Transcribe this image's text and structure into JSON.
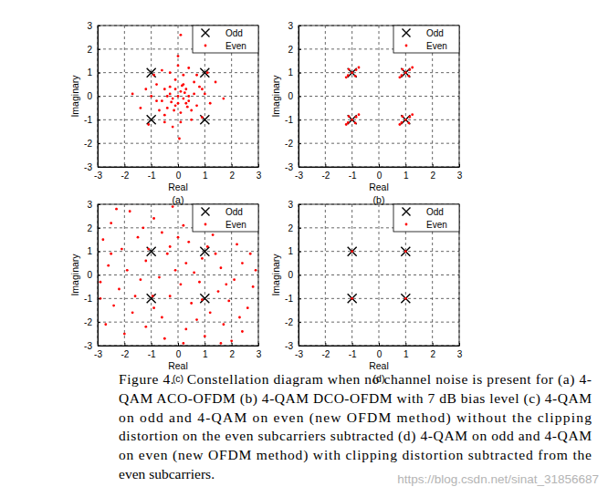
{
  "chart_data": [
    {
      "type": "scatter",
      "title": "(a)",
      "xlabel": "Real",
      "ylabel": "Imaginary",
      "xlim": [
        -3,
        3
      ],
      "ylim": [
        -3,
        3
      ],
      "xticks": [
        -3,
        -2,
        -1,
        0,
        1,
        2,
        3
      ],
      "yticks": [
        -3,
        -2,
        -1,
        0,
        1,
        2,
        3
      ],
      "grid": true,
      "legend": "upper right",
      "series": [
        {
          "name": "Odd",
          "color": "#000000",
          "marker": "x",
          "x": [
            -1,
            -1,
            1,
            1
          ],
          "values": [
            1,
            -1,
            1,
            -1
          ]
        },
        {
          "name": "Even",
          "color": "#ff0000",
          "marker": "point",
          "x": [
            0.1,
            -0.3,
            0.4,
            -0.1,
            0.2,
            -0.5,
            0.6,
            -0.2,
            0,
            0.3,
            -0.4,
            0.5,
            -0.6,
            0.1,
            -0.1,
            0.8,
            -0.8,
            0.7,
            -0.7,
            0.2,
            -0.3,
            0,
            0.1,
            -0.2,
            1,
            -1,
            1.2,
            -1.2,
            0.4,
            -0.6,
            0.5,
            -0.5,
            1.4,
            -1.4,
            0.9,
            -0.9,
            0.3,
            -0.3,
            0.6,
            -0.5,
            0,
            0.1,
            0.05,
            -1.7,
            1.7,
            -1.1,
            1.1,
            0.2,
            -0.1,
            0.4,
            -0.4,
            0,
            0.15,
            -0.25,
            0.35,
            0.7,
            -0.8,
            0.25,
            -0.15,
            0.9
          ],
          "values": [
            0.2,
            0.1,
            -0.2,
            -0.4,
            0.5,
            0.3,
            0.1,
            -0.1,
            0,
            0.3,
            -0.5,
            -0.6,
            -0.2,
            -0.7,
            0.7,
            0.4,
            0.5,
            -0.4,
            -0.6,
            0.9,
            1,
            1.3,
            -1.1,
            -1.3,
            0.1,
            0,
            -0.3,
            0.3,
            1.2,
            1.1,
            -1,
            -1.1,
            0.6,
            -0.5,
            -0.9,
            0.9,
            -0.3,
            0.4,
            0.6,
            -0.8,
            1.7,
            2.6,
            -1.8,
            0.1,
            -0.1,
            -1.2,
            1,
            -0.1,
            0.3,
            0,
            0,
            -0.3,
            0.45,
            -0.25,
            -0.45,
            0.9,
            -0.2,
            0.15,
            -0.6,
            0.3
          ]
        }
      ]
    },
    {
      "type": "scatter",
      "title": "(b)",
      "xlabel": "Real",
      "ylabel": "Imaginary",
      "xlim": [
        -3,
        3
      ],
      "ylim": [
        -3,
        3
      ],
      "xticks": [
        -3,
        -2,
        -1,
        0,
        1,
        2,
        3
      ],
      "yticks": [
        -3,
        -2,
        -1,
        0,
        1,
        2,
        3
      ],
      "grid": true,
      "legend": "upper right",
      "series": [
        {
          "name": "Odd",
          "color": "#000000",
          "marker": "x",
          "x": [
            -1,
            -1,
            1,
            1
          ],
          "values": [
            1,
            -1,
            1,
            -1
          ]
        },
        {
          "name": "Even",
          "color": "#ff0000",
          "marker": "point",
          "x": [
            1,
            1.15,
            0.85,
            1.12,
            0.88,
            1.25,
            0.78,
            -1,
            -0.85,
            -1.15,
            -0.88,
            -1.12,
            -0.75,
            -1.22,
            1,
            1.15,
            0.85,
            1.12,
            0.88,
            1.25,
            0.78,
            -1,
            -0.85,
            -1.15,
            -0.88,
            -1.12,
            -0.75,
            -1.22
          ],
          "values": [
            1,
            1.12,
            0.88,
            0.86,
            1.14,
            1.22,
            0.8,
            1,
            1.12,
            0.88,
            0.86,
            1.14,
            1.22,
            0.8,
            -1,
            -0.88,
            -1.12,
            -1.14,
            -0.86,
            -0.78,
            -1.2,
            -1,
            -0.88,
            -1.12,
            -1.14,
            -0.86,
            -0.78,
            -1.2
          ]
        }
      ]
    },
    {
      "type": "scatter",
      "title": "(c)",
      "xlabel": "Real",
      "ylabel": "Imaginary",
      "xlim": [
        -3,
        3
      ],
      "ylim": [
        -3,
        3
      ],
      "xticks": [
        -3,
        -2,
        -1,
        0,
        1,
        2,
        3
      ],
      "yticks": [
        -3,
        -2,
        -1,
        0,
        1,
        2,
        3
      ],
      "grid": true,
      "legend": "upper right",
      "series": [
        {
          "name": "Odd",
          "color": "#000000",
          "marker": "x",
          "x": [
            -1,
            -1,
            1,
            1
          ],
          "values": [
            1,
            -1,
            1,
            -1
          ]
        },
        {
          "name": "Even",
          "color": "#ff0000",
          "marker": "point",
          "x": [
            -2.5,
            -1.8,
            -0.9,
            -0.2,
            0.2,
            -2.8,
            -2.1,
            -1.5,
            -0.6,
            0.4,
            1.3,
            2.2,
            2.7,
            -2.6,
            -1.9,
            -1.2,
            -0.4,
            0.3,
            0.9,
            1.6,
            2.4,
            -2.9,
            -2.2,
            -1.4,
            -0.7,
            0.1,
            0.8,
            1.5,
            2.1,
            2.8,
            -2.4,
            -1.7,
            -0.9,
            -0.3,
            0.5,
            1.2,
            1.9,
            2.6,
            -2.7,
            -2,
            -1.2,
            -0.5,
            0.3,
            1,
            1.7,
            2.4,
            -1.1,
            1.1,
            -0.95,
            0.9,
            -0.1,
            0.6,
            -1.6,
            1.8,
            -2.3,
            -1.3,
            0,
            1.4,
            2.9,
            -0.6,
            0.7,
            2,
            -2.9,
            0.2,
            -0.3,
            1.6,
            -2.5,
            2.3
          ],
          "values": [
            2.2,
            2.7,
            2.4,
            2.9,
            2.1,
            1.5,
            1.1,
            1.6,
            1.8,
            1.4,
            1.7,
            1.3,
            0.9,
            0.4,
            0.2,
            0.6,
            0.9,
            0.5,
            0.7,
            0.3,
            0.5,
            -0.3,
            -0.6,
            -0.2,
            -0.1,
            -0.4,
            -0.3,
            -0.7,
            -0.2,
            -0.5,
            -1.3,
            -1.6,
            -1.4,
            -0.9,
            -1.2,
            -1.6,
            -1.1,
            -1.4,
            -2.1,
            -2.5,
            -2.2,
            -2.7,
            -2.3,
            -2.6,
            -2.1,
            -2.4,
            1.1,
            1.2,
            -0.9,
            -1.05,
            0.2,
            0.1,
            -0.9,
            -0.4,
            2.8,
            2,
            1.6,
            0.9,
            0.2,
            -1.8,
            -1.9,
            -2.8,
            -1,
            -2.9,
            1.2,
            -2.9,
            0.9,
            -1.8
          ]
        }
      ]
    },
    {
      "type": "scatter",
      "title": "(d)",
      "xlabel": "Real",
      "ylabel": "Imaginary",
      "xlim": [
        -3,
        3
      ],
      "ylim": [
        -3,
        3
      ],
      "xticks": [
        -3,
        -2,
        -1,
        0,
        1,
        2,
        3
      ],
      "yticks": [
        -3,
        -2,
        -1,
        0,
        1,
        2,
        3
      ],
      "grid": true,
      "legend": "upper right",
      "series": [
        {
          "name": "Odd",
          "color": "#000000",
          "marker": "x",
          "x": [
            -1,
            -1,
            1,
            1
          ],
          "values": [
            1,
            -1,
            1,
            -1
          ]
        },
        {
          "name": "Even",
          "color": "#ff0000",
          "marker": "point",
          "x": [
            -1,
            -1,
            1,
            1
          ],
          "values": [
            1,
            -1,
            1,
            -1
          ]
        }
      ]
    }
  ],
  "caption": [
    "Figure 4.   Constellation diagram when no channel noise is present for (a) 4-",
    "QAM ACO-OFDM (b) 4-QAM DCO-OFDM with 7 dB bias level (c) 4-QAM",
    "on odd and 4-QAM on even (new OFDM method) without the clipping",
    "distortion on the even subcarriers subtracted (d) 4-QAM on odd and 4-QAM",
    "on even (new OFDM method) with clipping distortion subtracted from the",
    "even subcarriers."
  ],
  "watermark": "https://blog.csdn.net/sinat_31856687"
}
